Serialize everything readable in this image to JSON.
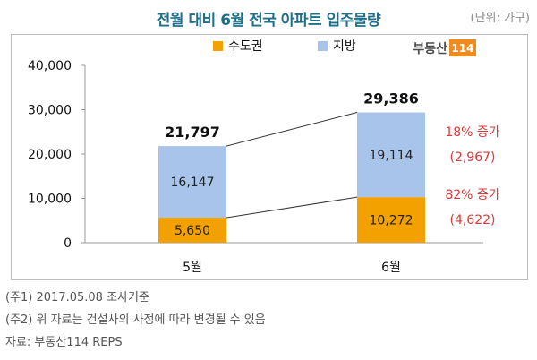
{
  "header": {
    "title": "전월 대비 6월 전국 아파트 입주물량",
    "unit": "(단위: 가구)"
  },
  "logo": {
    "text": "부동산",
    "number": "114"
  },
  "chart_data": {
    "type": "bar",
    "stacked": true,
    "categories": [
      "5월",
      "6월"
    ],
    "series": [
      {
        "name": "수도권",
        "values": [
          5650,
          10272
        ],
        "color": "#f2a100"
      },
      {
        "name": "지방",
        "values": [
          16147,
          19114
        ],
        "color": "#a9c4ea"
      }
    ],
    "totals": [
      "21,797",
      "29,386"
    ],
    "value_labels": {
      "수도권": [
        "5,650",
        "10,272"
      ],
      "지방": [
        "16,147",
        "19,114"
      ]
    },
    "ylim": [
      0,
      40000
    ],
    "yticks": [
      0,
      10000,
      20000,
      30000,
      40000
    ],
    "ytick_labels": [
      "0",
      "10,000",
      "20,000",
      "30,000",
      "40,000"
    ],
    "legend_position": "top-center",
    "annotations": [
      {
        "text": "18% 증가",
        "sub": "(2,967)",
        "segment": "지방",
        "color": "#d93a3a"
      },
      {
        "text": "82% 증가",
        "sub": "(4,622)",
        "segment": "수도권",
        "color": "#d93a3a"
      }
    ],
    "grid": false
  },
  "notes": [
    "(주1) 2017.05.08 조사기준",
    "(주2) 위 자료는 건설사의 사정에 따라 변경될 수 있음",
    "자료: 부동산114 REPS"
  ]
}
